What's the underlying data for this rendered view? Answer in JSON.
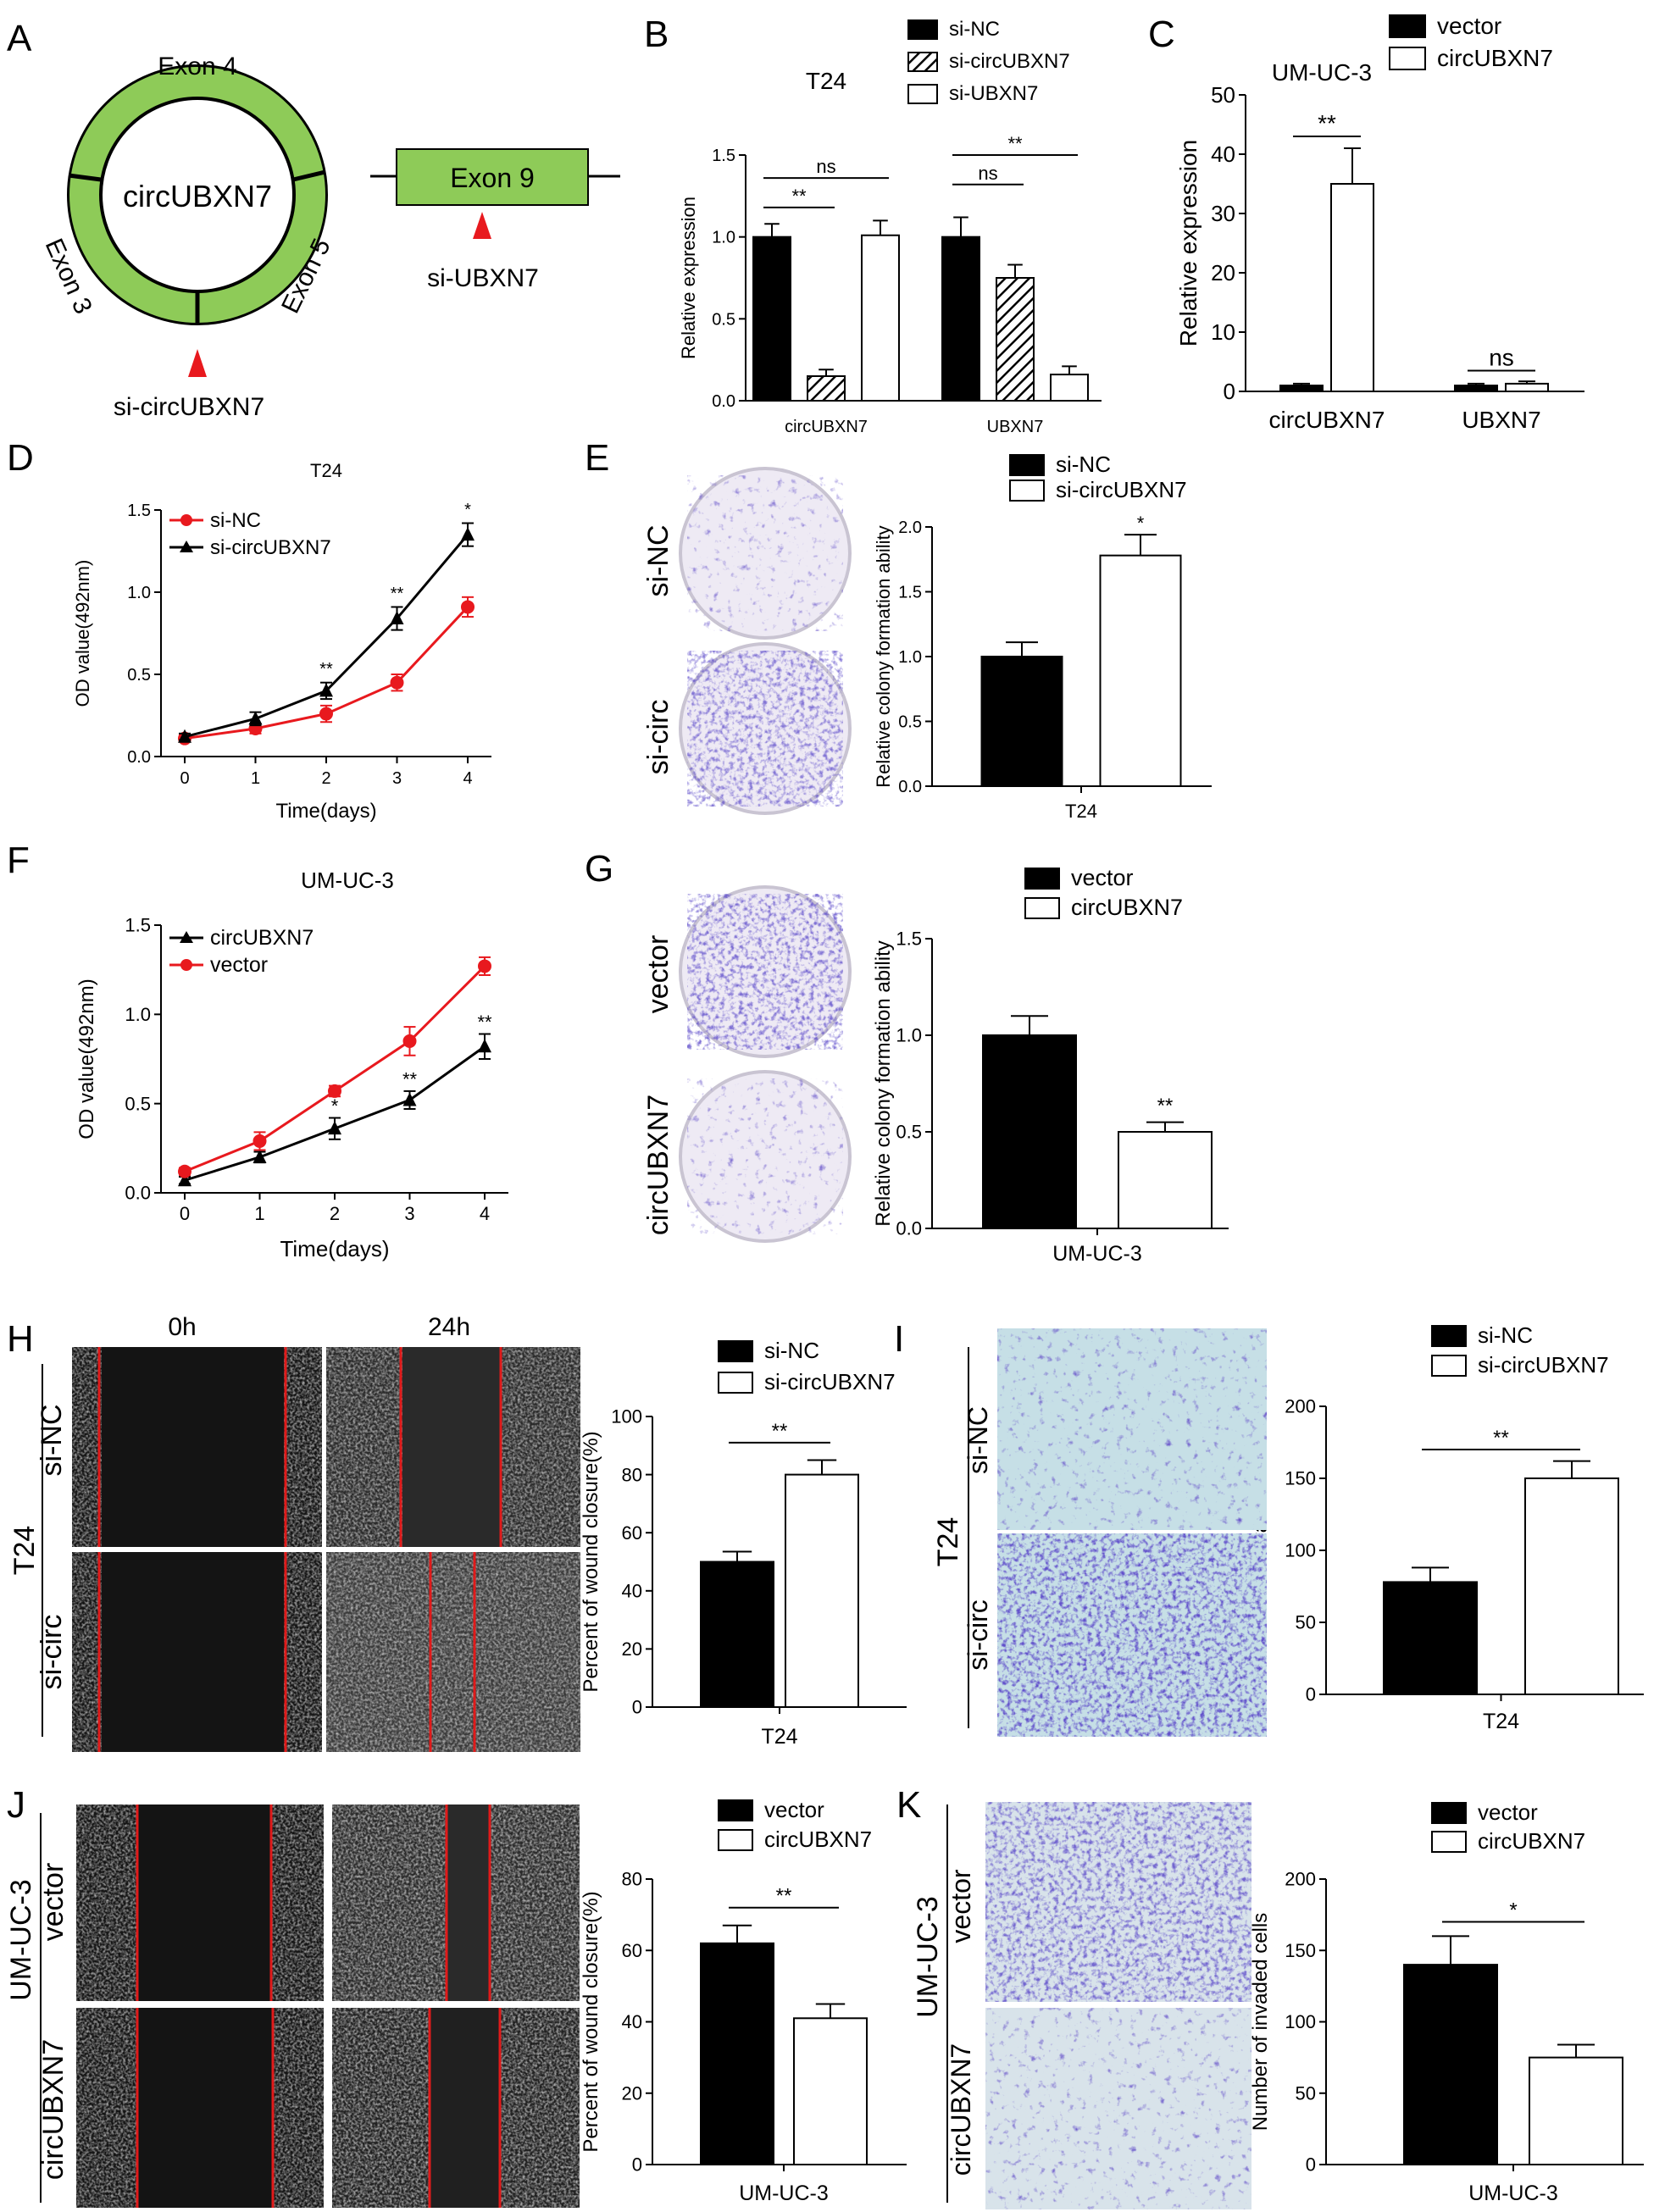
{
  "colors": {
    "black": "#000000",
    "white": "#ffffff",
    "red": "#e8191e",
    "green": "#8ecb58",
    "arrow_red": "#e8191e",
    "stain": "#6b3fb5",
    "micro_dark": "#1a1a1a",
    "scratch_line": "#e01a1a"
  },
  "panelA": {
    "letter": "A",
    "circle_label": "circUBXN7",
    "exon_top": "Exon 4",
    "exon_left": "Exon 3",
    "exon_right": "Exon 5",
    "linear_exon": "Exon 9",
    "si_circ_label": "si-circUBXN7",
    "si_lin_label": "si-UBXN7"
  },
  "panelD_letter": "D",
  "panelE_letter": "E",
  "panelF_letter": "F",
  "panelG_letter": "G",
  "panelH": {
    "letter": "H",
    "time_0": "0h",
    "time_24": "24h",
    "cell_line": "T24",
    "row_top": "si-NC",
    "row_bottom": "si-circ"
  },
  "panelI": {
    "letter": "I",
    "cell_line": "T24",
    "row_top": "si-NC",
    "row_bottom": "si-circ"
  },
  "panelJ": {
    "letter": "J",
    "cell_line": "UM-UC-3",
    "row_top": "vector",
    "row_bottom": "circUBXN7"
  },
  "panelK": {
    "letter": "K",
    "cell_line": "UM-UC-3",
    "row_top": "vector",
    "row_bottom": "circUBXN7"
  },
  "plateE": {
    "top": "si-NC",
    "bottom": "si-circ"
  },
  "plateG": {
    "top": "vector",
    "bottom": "circUBXN7"
  },
  "chart_data": [
    {
      "id": "B",
      "letter": "B",
      "type": "bar",
      "title": "T24",
      "ylabel": "Relative expression",
      "xlabel": "",
      "ylim": [
        0,
        1.5
      ],
      "yticks": [
        "0.0",
        "0.5",
        "1.0",
        "1.5"
      ],
      "categories": [
        "circUBXN7",
        "UBXN7"
      ],
      "series": [
        {
          "name": "si-NC",
          "fill": "black",
          "values": [
            1.0,
            1.0
          ],
          "errors": [
            0.08,
            0.12
          ]
        },
        {
          "name": "si-circUBXN7",
          "fill": "hatch",
          "values": [
            0.15,
            0.75
          ],
          "errors": [
            0.04,
            0.08
          ]
        },
        {
          "name": "si-UBXN7",
          "fill": "white",
          "values": [
            1.01,
            0.16
          ],
          "errors": [
            0.09,
            0.05
          ]
        }
      ],
      "legend": "top-right",
      "annotations": [
        {
          "text": "**",
          "level": 1.18,
          "from": [
            0,
            0
          ],
          "to": [
            0,
            1
          ]
        },
        {
          "text": "ns",
          "level": 1.36,
          "from": [
            0,
            0
          ],
          "to": [
            0,
            2
          ]
        },
        {
          "text": "ns",
          "level": 1.32,
          "from": [
            1,
            0
          ],
          "to": [
            1,
            1
          ]
        },
        {
          "text": "**",
          "level": 1.5,
          "from": [
            1,
            0
          ],
          "to": [
            1,
            2
          ]
        }
      ]
    },
    {
      "id": "C",
      "letter": "C",
      "type": "bar",
      "title": "UM-UC-3",
      "ylabel": "Relative expression",
      "xlabel": "",
      "ylim": [
        0,
        50
      ],
      "yticks": [
        "0",
        "10",
        "20",
        "30",
        "40",
        "50"
      ],
      "categories": [
        "circUBXN7",
        "UBXN7"
      ],
      "series": [
        {
          "name": "vector",
          "fill": "black",
          "values": [
            1.0,
            1.0
          ],
          "errors": [
            0.3,
            0.3
          ]
        },
        {
          "name": "circUBXN7",
          "fill": "white",
          "values": [
            35,
            1.3
          ],
          "errors": [
            6,
            0.4
          ]
        }
      ],
      "legend": "top-right",
      "annotations": [
        {
          "text": "**",
          "level": 43,
          "from": [
            0,
            0
          ],
          "to": [
            0,
            1
          ]
        },
        {
          "text": "ns",
          "level": 3.5,
          "from": [
            1,
            0
          ],
          "to": [
            1,
            1
          ]
        }
      ]
    },
    {
      "id": "D",
      "type": "line",
      "title": "T24",
      "xlabel": "Time(days)",
      "ylabel": "OD value(492nm)",
      "x": [
        0,
        1,
        2,
        3,
        4
      ],
      "xticks": [
        "0",
        "1",
        "2",
        "3",
        "4"
      ],
      "ylim": [
        0,
        1.5
      ],
      "yticks": [
        "0.0",
        "0.5",
        "1.0",
        "1.5"
      ],
      "series": [
        {
          "name": "si-NC",
          "color": "red",
          "marker": "circle",
          "values": [
            0.11,
            0.17,
            0.26,
            0.45,
            0.91
          ],
          "errors": [
            0.02,
            0.03,
            0.05,
            0.05,
            0.06
          ]
        },
        {
          "name": "si-circUBXN7",
          "color": "black",
          "marker": "triangle",
          "values": [
            0.12,
            0.23,
            0.4,
            0.84,
            1.35
          ],
          "errors": [
            0.02,
            0.04,
            0.05,
            0.07,
            0.07
          ]
        }
      ],
      "legend": "top-left",
      "annotations": [
        {
          "text": "**",
          "x": 2,
          "y": 0.5
        },
        {
          "text": "**",
          "x": 3,
          "y": 0.96
        },
        {
          "text": "*",
          "x": 4,
          "y": 1.47
        }
      ]
    },
    {
      "id": "E",
      "type": "bar",
      "title": "",
      "xlabel": "T24",
      "ylabel": "Relative colony formation ability",
      "ylim": [
        0,
        2.0
      ],
      "yticks": [
        "0.0",
        "0.5",
        "1.0",
        "1.5",
        "2.0"
      ],
      "categories": [
        ""
      ],
      "series": [
        {
          "name": "si-NC",
          "fill": "black",
          "values": [
            1.0
          ],
          "errors": [
            0.11
          ]
        },
        {
          "name": "si-circUBXN7",
          "fill": "white",
          "values": [
            1.78
          ],
          "errors": [
            0.16
          ]
        }
      ],
      "legend": "top-right",
      "annotations": [
        {
          "text": "*",
          "bar": 1,
          "y": 1.98
        }
      ]
    },
    {
      "id": "F",
      "type": "line",
      "title": "UM-UC-3",
      "xlabel": "Time(days)",
      "ylabel": "OD value(492nm)",
      "x": [
        0,
        1,
        2,
        3,
        4
      ],
      "xticks": [
        "0",
        "1",
        "2",
        "3",
        "4"
      ],
      "ylim": [
        0,
        1.5
      ],
      "yticks": [
        "0.0",
        "0.5",
        "1.0",
        "1.5"
      ],
      "series": [
        {
          "name": "circUBXN7",
          "color": "black",
          "marker": "triangle",
          "values": [
            0.07,
            0.2,
            0.36,
            0.52,
            0.82
          ],
          "errors": [
            0.02,
            0.03,
            0.06,
            0.05,
            0.07
          ]
        },
        {
          "name": "vector",
          "color": "red",
          "marker": "circle",
          "values": [
            0.12,
            0.29,
            0.57,
            0.85,
            1.27
          ],
          "errors": [
            0.02,
            0.05,
            0.03,
            0.08,
            0.05
          ]
        }
      ],
      "legend": "top-left",
      "annotations": [
        {
          "text": "*",
          "x": 2,
          "y": 0.45
        },
        {
          "text": "**",
          "x": 3,
          "y": 0.6
        },
        {
          "text": "**",
          "x": 4,
          "y": 0.92
        }
      ]
    },
    {
      "id": "G",
      "type": "bar",
      "title": "",
      "xlabel": "UM-UC-3",
      "ylabel": "Relative colony formation ability",
      "ylim": [
        0,
        1.5
      ],
      "yticks": [
        "0.0",
        "0.5",
        "1.0",
        "1.5"
      ],
      "categories": [
        ""
      ],
      "series": [
        {
          "name": "vector",
          "fill": "black",
          "values": [
            1.0
          ],
          "errors": [
            0.1
          ]
        },
        {
          "name": "circUBXN7",
          "fill": "white",
          "values": [
            0.5
          ],
          "errors": [
            0.05
          ]
        }
      ],
      "legend": "top-right",
      "annotations": [
        {
          "text": "**",
          "bar": 1,
          "y": 0.6
        }
      ]
    },
    {
      "id": "H",
      "type": "bar",
      "title": "",
      "xlabel": "T24",
      "ylabel": "Percent of wound closure(%)",
      "ylim": [
        0,
        100
      ],
      "yticks": [
        "0",
        "20",
        "40",
        "60",
        "80",
        "100"
      ],
      "categories": [
        ""
      ],
      "series": [
        {
          "name": "si-NC",
          "fill": "black",
          "values": [
            50
          ],
          "errors": [
            3.5
          ]
        },
        {
          "name": "si-circUBXN7",
          "fill": "white",
          "values": [
            80
          ],
          "errors": [
            5
          ]
        }
      ],
      "legend": "top-right",
      "annotations": [
        {
          "text": "**",
          "level": 91,
          "from": 0,
          "to": 1
        }
      ]
    },
    {
      "id": "I",
      "type": "bar",
      "title": "",
      "xlabel": "T24",
      "ylabel": "Number of invaded cells",
      "ylim": [
        0,
        200
      ],
      "yticks": [
        "0",
        "50",
        "100",
        "150",
        "200"
      ],
      "categories": [
        ""
      ],
      "series": [
        {
          "name": "si-NC",
          "fill": "black",
          "values": [
            78
          ],
          "errors": [
            10
          ]
        },
        {
          "name": "si-circUBXN7",
          "fill": "white",
          "values": [
            150
          ],
          "errors": [
            12
          ]
        }
      ],
      "legend": "top-right",
      "annotations": [
        {
          "text": "**",
          "level": 170,
          "from": 0,
          "to": 1
        }
      ]
    },
    {
      "id": "J",
      "type": "bar",
      "title": "",
      "xlabel": "UM-UC-3",
      "ylabel": "Percent of wound closure(%)",
      "ylim": [
        0,
        80
      ],
      "yticks": [
        "0",
        "20",
        "40",
        "60",
        "80"
      ],
      "categories": [
        ""
      ],
      "series": [
        {
          "name": "vector",
          "fill": "black",
          "values": [
            62
          ],
          "errors": [
            5
          ]
        },
        {
          "name": "circUBXN7",
          "fill": "white",
          "values": [
            41
          ],
          "errors": [
            4
          ]
        }
      ],
      "legend": "top-right",
      "annotations": [
        {
          "text": "**",
          "level": 72,
          "from": 0,
          "to": 1
        }
      ]
    },
    {
      "id": "K",
      "type": "bar",
      "title": "",
      "xlabel": "UM-UC-3",
      "ylabel": "Number of invaded cells",
      "ylim": [
        0,
        200
      ],
      "yticks": [
        "0",
        "50",
        "100",
        "150",
        "200"
      ],
      "categories": [
        ""
      ],
      "series": [
        {
          "name": "vector",
          "fill": "black",
          "values": [
            140
          ],
          "errors": [
            20
          ]
        },
        {
          "name": "circUBXN7",
          "fill": "white",
          "values": [
            75
          ],
          "errors": [
            9
          ]
        }
      ],
      "legend": "top-right",
      "annotations": [
        {
          "text": "*",
          "level": 170,
          "from": 0,
          "to": 1
        }
      ]
    }
  ]
}
